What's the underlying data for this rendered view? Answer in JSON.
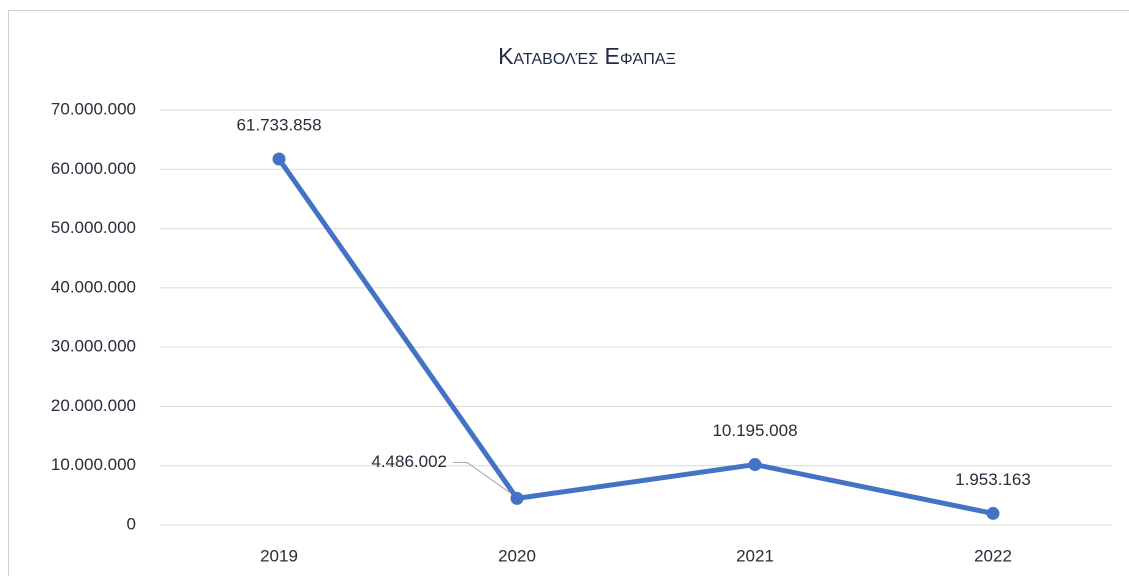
{
  "chart_data": {
    "type": "line",
    "title": "Καταβολές Εφάπαξ",
    "categories": [
      "2019",
      "2020",
      "2021",
      "2022"
    ],
    "series": [
      {
        "name": "Καταβολές Εφάπαξ",
        "color": "#4472c4",
        "values": [
          61733858,
          4486002,
          10195008,
          1953163
        ],
        "value_labels": [
          "61.733.858",
          "4.486.002",
          "10.195.008",
          "1.953.163"
        ]
      }
    ],
    "ylim": [
      0,
      70000000
    ],
    "yticks": [
      {
        "value": 0,
        "label": "0"
      },
      {
        "value": 10000000,
        "label": "10.000.000"
      },
      {
        "value": 20000000,
        "label": "20.000.000"
      },
      {
        "value": 30000000,
        "label": "30.000.000"
      },
      {
        "value": 40000000,
        "label": "40.000.000"
      },
      {
        "value": 50000000,
        "label": "50.000.000"
      },
      {
        "value": 60000000,
        "label": "60.000.000"
      },
      {
        "value": 70000000,
        "label": "70.000.000"
      }
    ],
    "grid": true
  }
}
